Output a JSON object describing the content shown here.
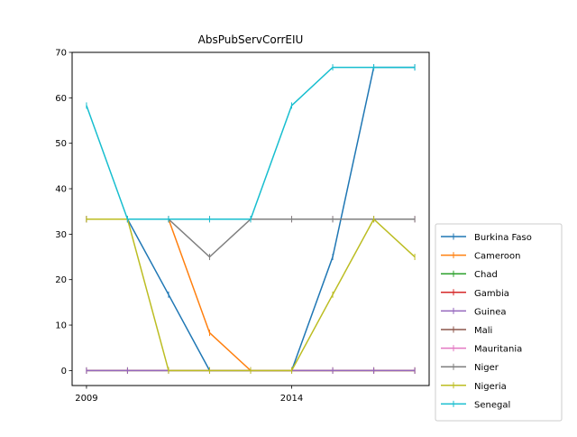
{
  "chart_data": {
    "type": "line",
    "title": "AbsPubServCorrEIU",
    "xlabel": "",
    "ylabel": "",
    "x": [
      2009,
      2010,
      2011,
      2012,
      2013,
      2014,
      2015,
      2016,
      2017
    ],
    "x_ticks": [
      2009,
      2014
    ],
    "x_tick_labels": [
      "2009",
      "2014"
    ],
    "xlim": [
      2008.65,
      2017.35
    ],
    "ylim": [
      -3.3,
      70
    ],
    "y_ticks": [
      0,
      10,
      20,
      30,
      40,
      50,
      60,
      70
    ],
    "y_tick_labels": [
      "0",
      "10",
      "20",
      "30",
      "40",
      "50",
      "60",
      "70"
    ],
    "grid": false,
    "legend_position": "right, outside plot",
    "series": [
      {
        "name": "Burkina Faso",
        "color": "#1f77b4",
        "values": [
          33.3,
          33.3,
          16.7,
          0,
          0,
          0,
          25,
          66.7,
          66.7
        ]
      },
      {
        "name": "Cameroon",
        "color": "#ff7f0e",
        "values": [
          33.3,
          33.3,
          33.3,
          8.3,
          0,
          0,
          0,
          0,
          0
        ]
      },
      {
        "name": "Chad",
        "color": "#2ca02c",
        "values": [
          0,
          0,
          0,
          0,
          0,
          0,
          0,
          0,
          0
        ]
      },
      {
        "name": "Gambia",
        "color": "#d62728",
        "values": [
          0,
          0,
          0,
          0,
          0,
          0,
          0,
          0,
          0
        ]
      },
      {
        "name": "Guinea",
        "color": "#9467bd",
        "values": [
          0,
          0,
          0,
          0,
          0,
          0,
          0,
          0,
          0
        ]
      },
      {
        "name": "Mali",
        "color": "#8c564b",
        "values": [
          33.3,
          33.3,
          33.3,
          33.3,
          33.3,
          33.3,
          33.3,
          33.3,
          33.3
        ]
      },
      {
        "name": "Mauritania",
        "color": "#e377c2",
        "values": [
          33.3,
          33.3,
          33.3,
          33.3,
          33.3,
          33.3,
          33.3,
          33.3,
          33.3
        ]
      },
      {
        "name": "Niger",
        "color": "#7f7f7f",
        "values": [
          33.3,
          33.3,
          33.3,
          25,
          33.3,
          33.3,
          33.3,
          33.3,
          33.3
        ]
      },
      {
        "name": "Nigeria",
        "color": "#bcbd22",
        "values": [
          33.3,
          33.3,
          0,
          0,
          0,
          0,
          16.7,
          33.3,
          25
        ]
      },
      {
        "name": "Senegal",
        "color": "#17becf",
        "values": [
          58.3,
          33.3,
          33.3,
          33.3,
          33.3,
          58.3,
          66.7,
          66.7,
          66.7
        ]
      }
    ]
  }
}
